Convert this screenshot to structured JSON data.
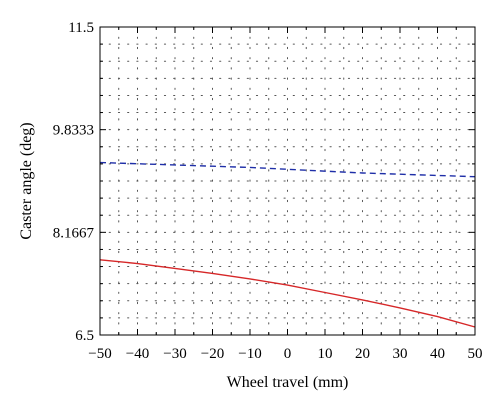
{
  "chart_data": {
    "type": "line",
    "title": "",
    "xlabel": "Wheel travel (mm)",
    "ylabel": "Caster angle (deg)",
    "xlim": [
      -50,
      50
    ],
    "ylim": [
      6.5,
      11.5
    ],
    "x_ticks": [
      -50,
      -40,
      -30,
      -20,
      -10,
      0,
      10,
      20,
      30,
      40,
      50
    ],
    "x_tick_labels": [
      "−50",
      "−40",
      "−30",
      "−20",
      "−10",
      "0",
      "10",
      "20",
      "30",
      "40",
      "50"
    ],
    "y_ticks": [
      6.5,
      8.1667,
      9.8333,
      11.5
    ],
    "y_tick_labels": [
      "6.5",
      "8.1667",
      "9.8333",
      "11.5"
    ],
    "grid": true,
    "legend": "none",
    "x": [
      -50,
      -40,
      -30,
      -20,
      -10,
      0,
      10,
      20,
      30,
      40,
      50
    ],
    "series": [
      {
        "values": [
          9.3,
          9.28,
          9.26,
          9.24,
          9.22,
          9.19,
          9.16,
          9.13,
          9.11,
          9.09,
          9.07
        ],
        "color": "#1f2fa8",
        "style": "dashed"
      },
      {
        "values": [
          7.72,
          7.66,
          7.58,
          7.5,
          7.41,
          7.31,
          7.19,
          7.07,
          6.94,
          6.8,
          6.63
        ],
        "color": "#d62728",
        "style": "solid"
      }
    ]
  }
}
